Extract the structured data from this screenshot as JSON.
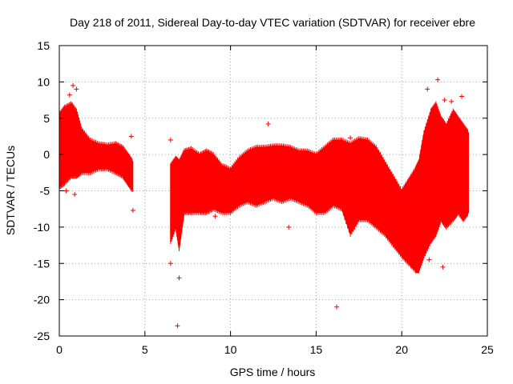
{
  "chart_data": {
    "type": "scatter",
    "title": "Day 218 of 2011, Sidereal Day-to-day VTEC variation (SDTVAR) for receiver ebre",
    "xlabel": "GPS time / hours",
    "ylabel": "SDTVAR / TECUs",
    "xlim": [
      0,
      25
    ],
    "ylim": [
      -25,
      15
    ],
    "xticks": [
      0,
      5,
      10,
      15,
      20,
      25
    ],
    "yticks": [
      -25,
      -20,
      -15,
      -10,
      -5,
      0,
      5,
      10,
      15
    ],
    "grid": true,
    "colors": {
      "series": "#ff0000",
      "grid": "#a0a0a0",
      "axis": "#000000"
    },
    "series": [
      {
        "name": "SDTVAR",
        "marker": "plus",
        "band": [
          {
            "x": 0.0,
            "lo": -4.5,
            "hi": 5.5
          },
          {
            "x": 0.3,
            "lo": -4.0,
            "hi": 6.5
          },
          {
            "x": 0.7,
            "lo": -3.0,
            "hi": 7.0
          },
          {
            "x": 1.0,
            "lo": -3.0,
            "hi": 6.0
          },
          {
            "x": 1.3,
            "lo": -2.5,
            "hi": 3.5
          },
          {
            "x": 1.8,
            "lo": -2.5,
            "hi": 2.0
          },
          {
            "x": 2.3,
            "lo": -2.0,
            "hi": 1.5
          },
          {
            "x": 2.8,
            "lo": -2.0,
            "hi": 1.3
          },
          {
            "x": 3.3,
            "lo": -2.5,
            "hi": 1.5
          },
          {
            "x": 3.7,
            "lo": -3.0,
            "hi": 1.0
          },
          {
            "x": 4.0,
            "lo": -4.0,
            "hi": 0.0
          },
          {
            "x": 4.3,
            "lo": -5.0,
            "hi": -1.0
          },
          {
            "x": null
          },
          {
            "x": 6.5,
            "lo": -12.0,
            "hi": -1.5
          },
          {
            "x": 6.8,
            "lo": -10.0,
            "hi": -0.5
          },
          {
            "x": 7.0,
            "lo": -13.0,
            "hi": -1.0
          },
          {
            "x": 7.3,
            "lo": -8.0,
            "hi": 0.5
          },
          {
            "x": 7.7,
            "lo": -8.0,
            "hi": 0.8
          },
          {
            "x": 8.2,
            "lo": -8.0,
            "hi": 0.0
          },
          {
            "x": 8.6,
            "lo": -8.0,
            "hi": 0.5
          },
          {
            "x": 9.0,
            "lo": -7.5,
            "hi": 0.0
          },
          {
            "x": 9.5,
            "lo": -8.0,
            "hi": -1.5
          },
          {
            "x": 10.0,
            "lo": -8.0,
            "hi": -2.0
          },
          {
            "x": 10.5,
            "lo": -7.0,
            "hi": -0.5
          },
          {
            "x": 11.0,
            "lo": -6.5,
            "hi": 0.5
          },
          {
            "x": 11.5,
            "lo": -7.0,
            "hi": 1.0
          },
          {
            "x": 12.0,
            "lo": -6.5,
            "hi": 1.0
          },
          {
            "x": 12.5,
            "lo": -6.0,
            "hi": 1.2
          },
          {
            "x": 13.0,
            "lo": -6.5,
            "hi": 1.2
          },
          {
            "x": 13.5,
            "lo": -6.0,
            "hi": 1.0
          },
          {
            "x": 14.0,
            "lo": -6.5,
            "hi": 0.5
          },
          {
            "x": 14.5,
            "lo": -7.0,
            "hi": 0.5
          },
          {
            "x": 15.0,
            "lo": -8.0,
            "hi": 0.0
          },
          {
            "x": 15.5,
            "lo": -8.0,
            "hi": 1.0
          },
          {
            "x": 16.0,
            "lo": -7.0,
            "hi": 2.0
          },
          {
            "x": 16.5,
            "lo": -7.5,
            "hi": 2.0
          },
          {
            "x": 17.0,
            "lo": -11.0,
            "hi": 1.5
          },
          {
            "x": 17.5,
            "lo": -9.0,
            "hi": 2.2
          },
          {
            "x": 18.0,
            "lo": -9.0,
            "hi": 2.0
          },
          {
            "x": 18.5,
            "lo": -10.0,
            "hi": 1.0
          },
          {
            "x": 19.0,
            "lo": -11.0,
            "hi": -1.0
          },
          {
            "x": 19.5,
            "lo": -12.5,
            "hi": -3.0
          },
          {
            "x": 20.0,
            "lo": -14.0,
            "hi": -5.0
          },
          {
            "x": 20.4,
            "lo": -15.0,
            "hi": -3.5
          },
          {
            "x": 20.8,
            "lo": -16.0,
            "hi": -2.0
          },
          {
            "x": 21.0,
            "lo": -16.0,
            "hi": -1.0
          },
          {
            "x": 21.3,
            "lo": -14.0,
            "hi": 3.0
          },
          {
            "x": 21.7,
            "lo": -12.0,
            "hi": 6.0
          },
          {
            "x": 22.0,
            "lo": -11.0,
            "hi": 7.0
          },
          {
            "x": 22.3,
            "lo": -9.0,
            "hi": 5.0
          },
          {
            "x": 22.6,
            "lo": -10.0,
            "hi": 4.0
          },
          {
            "x": 23.0,
            "lo": -9.0,
            "hi": 6.0
          },
          {
            "x": 23.3,
            "lo": -8.0,
            "hi": 5.0
          },
          {
            "x": 23.6,
            "lo": -9.0,
            "hi": 4.0
          },
          {
            "x": 23.9,
            "lo": -8.0,
            "hi": 3.0
          }
        ],
        "spikes": [
          {
            "x": 0.8,
            "y": 9.5
          },
          {
            "x": 0.6,
            "y": 8.2
          },
          {
            "x": 1.0,
            "y": 9.0
          },
          {
            "x": 0.9,
            "y": -5.5
          },
          {
            "x": 0.4,
            "y": -5.0
          },
          {
            "x": 4.2,
            "y": 2.5
          },
          {
            "x": 4.3,
            "y": -7.7
          },
          {
            "x": 6.5,
            "y": 2.0
          },
          {
            "x": 6.5,
            "y": -15.0
          },
          {
            "x": 7.0,
            "y": -17.0
          },
          {
            "x": 6.9,
            "y": -23.6
          },
          {
            "x": 12.2,
            "y": 4.2
          },
          {
            "x": 16.2,
            "y": -21.0
          },
          {
            "x": 17.0,
            "y": 2.3
          },
          {
            "x": 21.5,
            "y": 9.0
          },
          {
            "x": 22.1,
            "y": 10.3
          },
          {
            "x": 22.5,
            "y": 7.5
          },
          {
            "x": 22.9,
            "y": 7.3
          },
          {
            "x": 23.5,
            "y": 8.0
          },
          {
            "x": 22.4,
            "y": -15.5
          },
          {
            "x": 21.6,
            "y": -14.5
          },
          {
            "x": 9.1,
            "y": -8.5
          },
          {
            "x": 13.4,
            "y": -10.0
          }
        ]
      }
    ]
  }
}
